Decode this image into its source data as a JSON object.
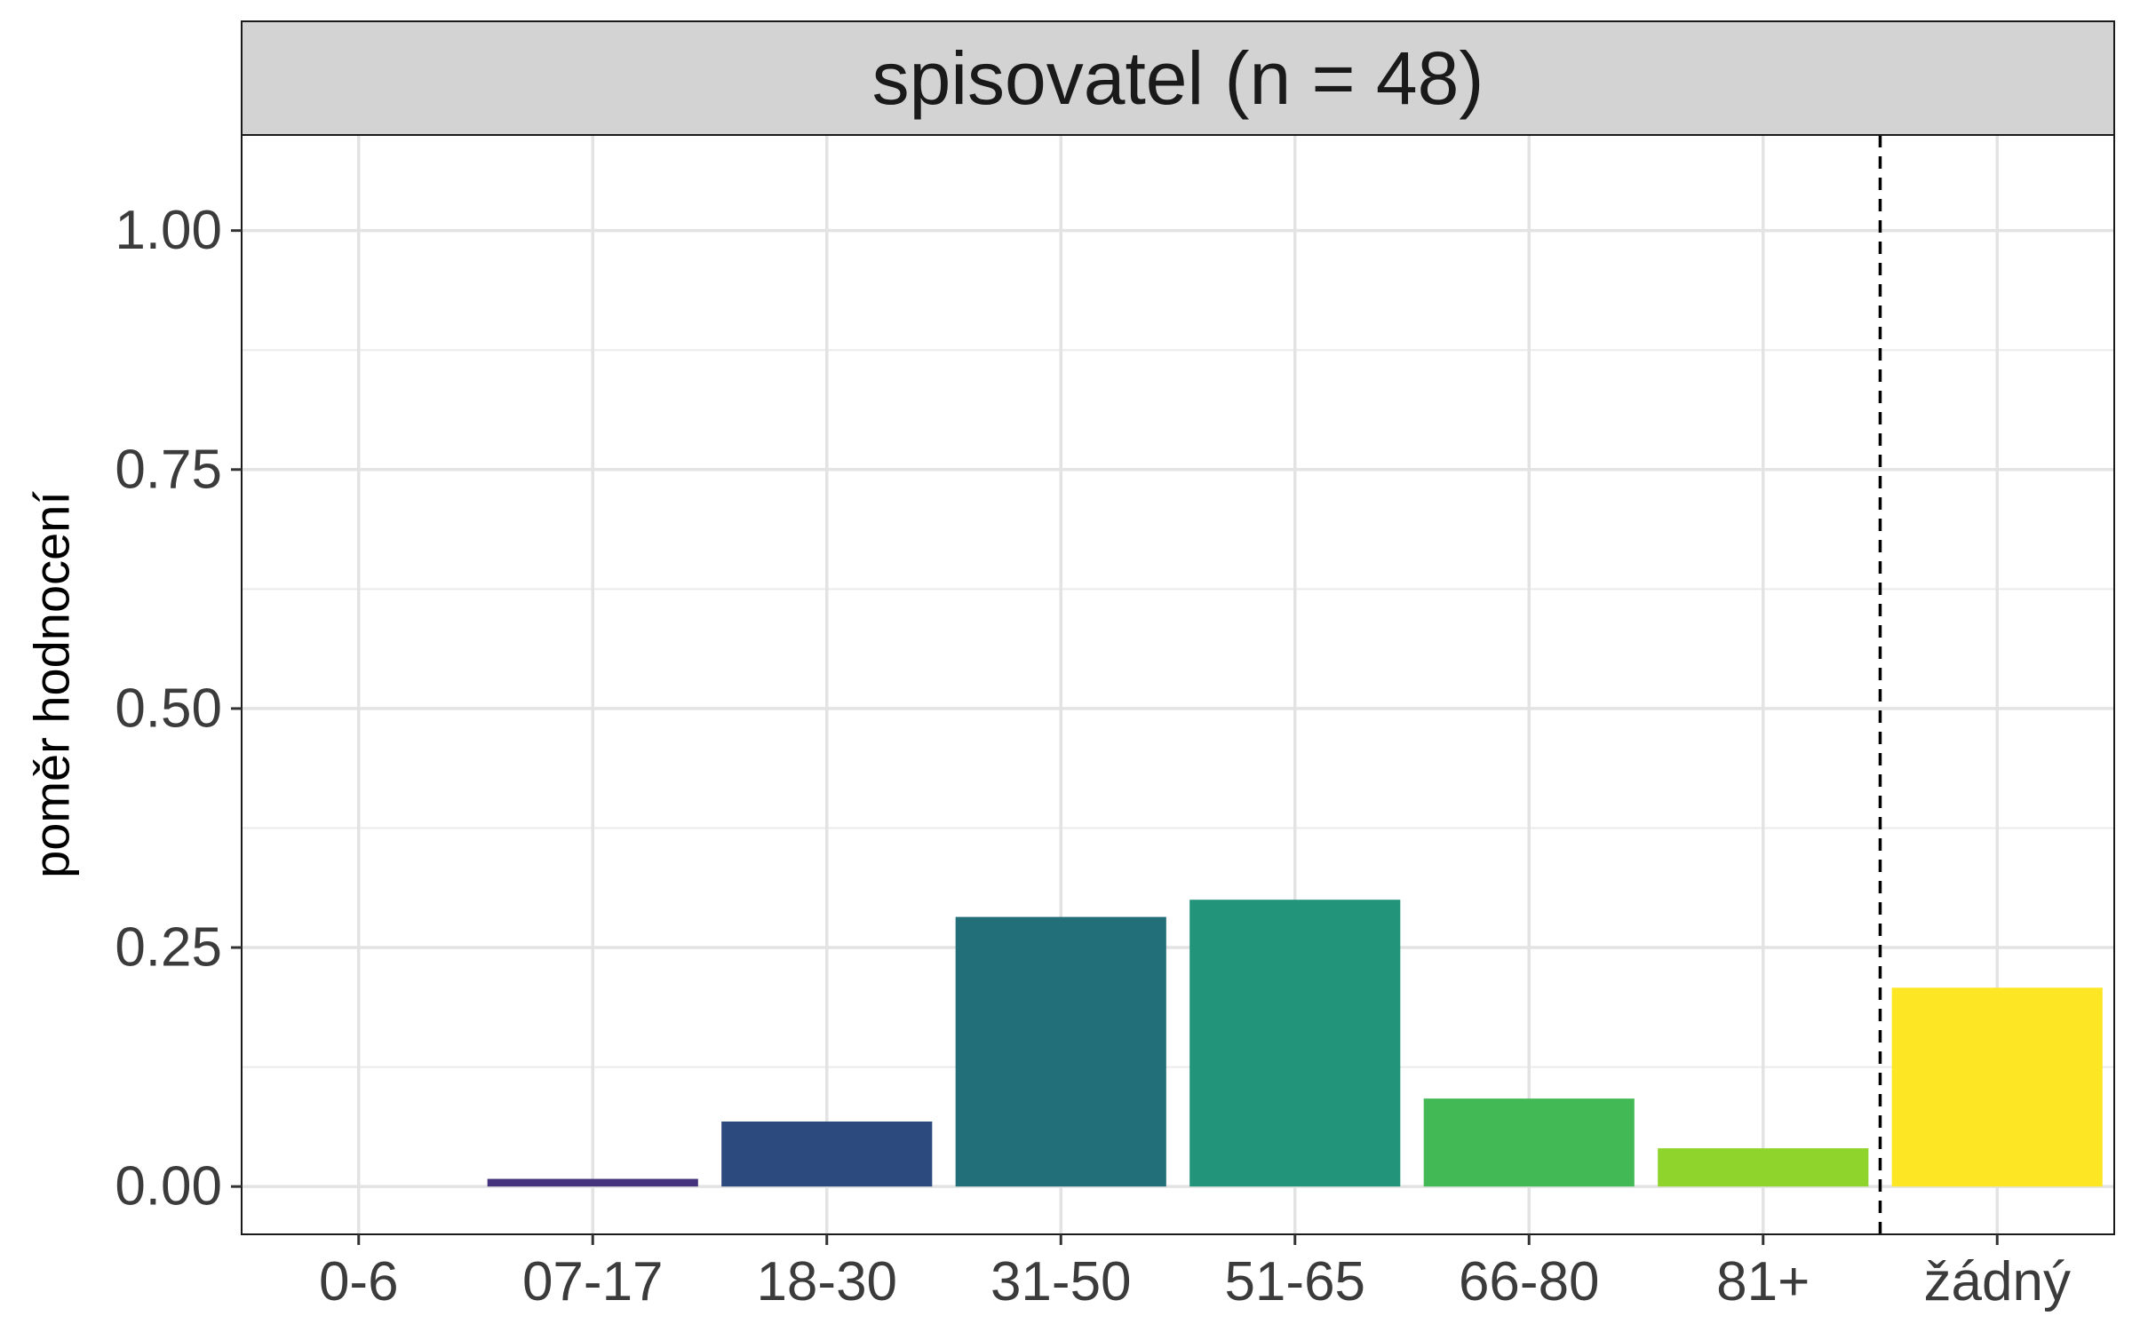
{
  "chart_data": {
    "type": "bar",
    "facet_title": "spisovatel (n = 48)",
    "xlabel": "",
    "ylabel": "poměr hodnocení",
    "categories": [
      "0-6",
      "07-17",
      "18-30",
      "31-50",
      "51-65",
      "66-80",
      "81+",
      "žádný"
    ],
    "values": [
      0.0,
      0.008,
      0.068,
      0.282,
      0.3,
      0.092,
      0.04,
      0.208
    ],
    "colors": [
      "#440154",
      "#46337E",
      "#2D4A7E",
      "#226F7A",
      "#21947A",
      "#42B955",
      "#8FD42C",
      "#FDE725"
    ],
    "ylim": [
      -0.05,
      1.1
    ],
    "yticks": [
      0.0,
      0.25,
      0.5,
      0.75,
      1.0
    ],
    "ytick_labels": [
      "0.00",
      "0.25",
      "0.50",
      "0.75",
      "1.00"
    ],
    "separator_after_category": "81+",
    "separator_style": "dashed",
    "grid": true,
    "legend": "none"
  }
}
